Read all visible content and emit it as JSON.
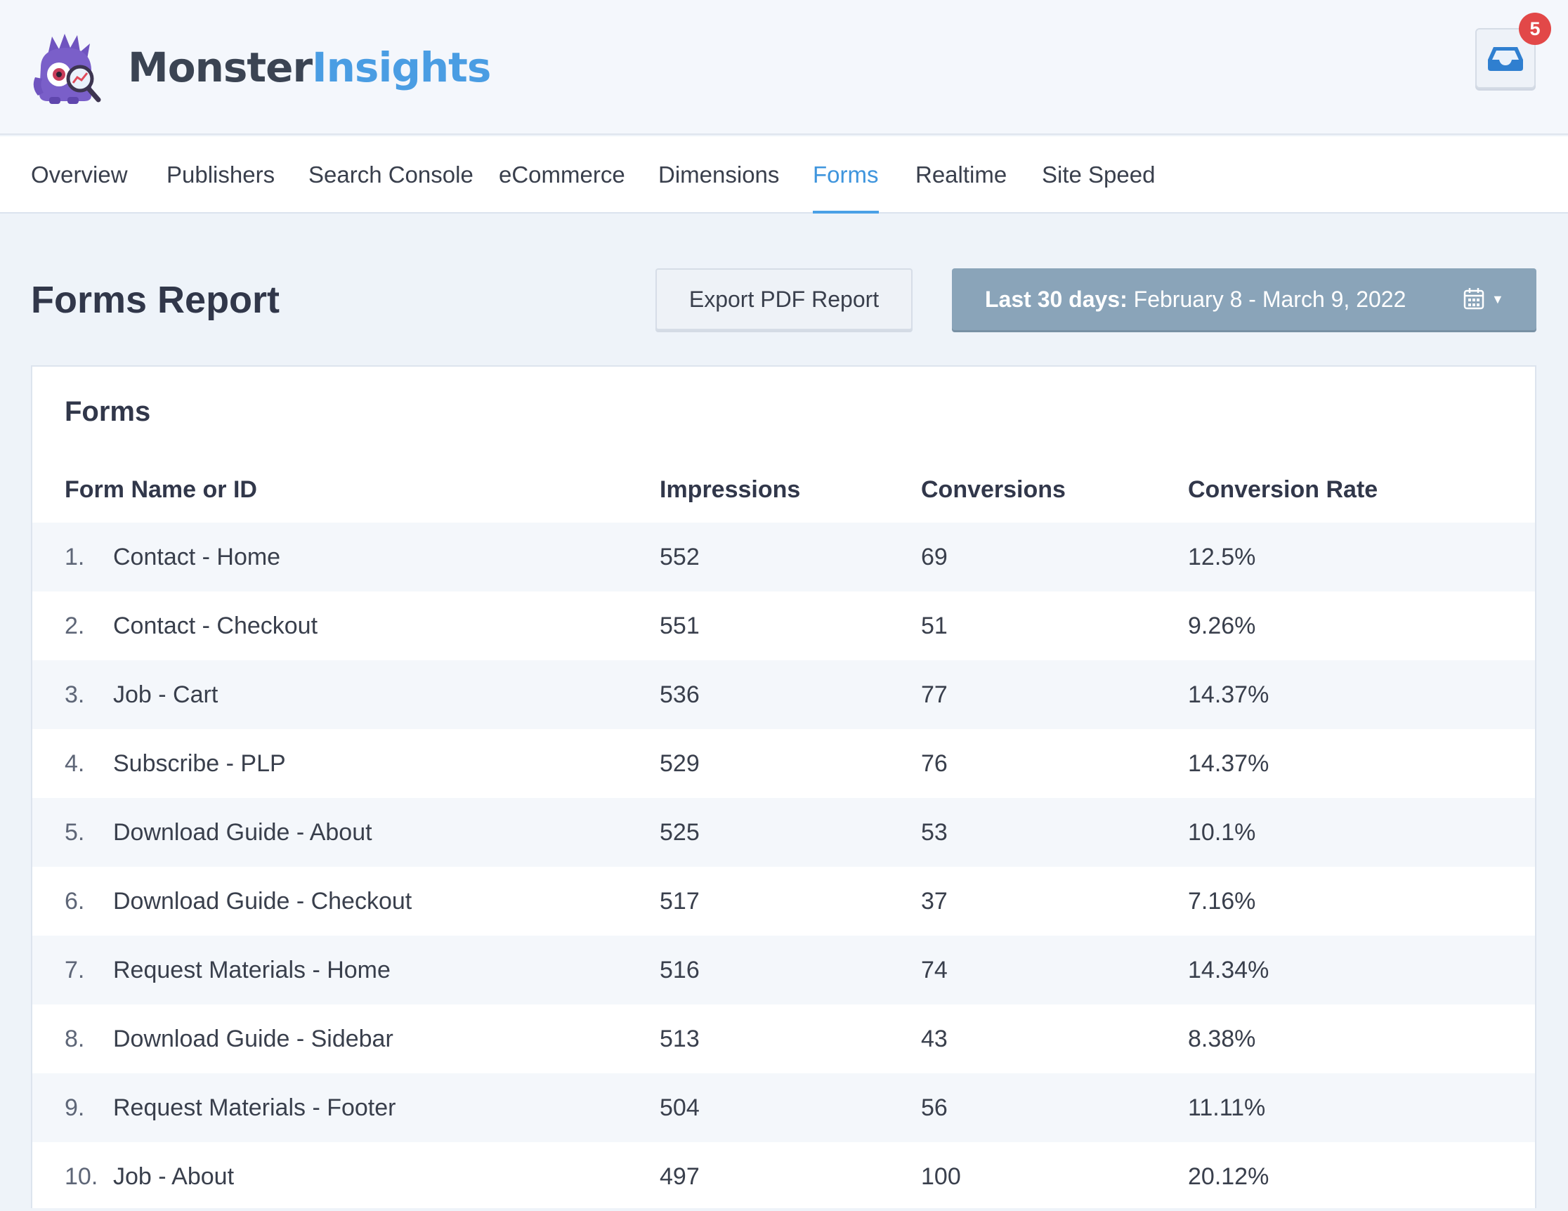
{
  "brand": {
    "name_part1": "Monster",
    "name_part2": "Insights"
  },
  "notifications": {
    "count": "5"
  },
  "tabs": [
    {
      "label": "Overview"
    },
    {
      "label": "Publishers"
    },
    {
      "label": "Search Console"
    },
    {
      "label": "eCommerce"
    },
    {
      "label": "Dimensions"
    },
    {
      "label": "Forms",
      "active": true
    },
    {
      "label": "Realtime"
    },
    {
      "label": "Site Speed"
    }
  ],
  "page": {
    "title": "Forms Report",
    "export_label": "Export PDF Report",
    "date_range_prefix": "Last 30 days:",
    "date_range_value": "February 8 - March 9, 2022"
  },
  "forms_table": {
    "title": "Forms",
    "columns": [
      "Form Name or ID",
      "Impressions",
      "Conversions",
      "Conversion Rate"
    ],
    "rows": [
      {
        "num": "1.",
        "name": "Contact - Home",
        "impressions": "552",
        "conversions": "69",
        "rate": "12.5%"
      },
      {
        "num": "2.",
        "name": "Contact - Checkout",
        "impressions": "551",
        "conversions": "51",
        "rate": "9.26%"
      },
      {
        "num": "3.",
        "name": "Job - Cart",
        "impressions": "536",
        "conversions": "77",
        "rate": "14.37%"
      },
      {
        "num": "4.",
        "name": "Subscribe - PLP",
        "impressions": "529",
        "conversions": "76",
        "rate": "14.37%"
      },
      {
        "num": "5.",
        "name": "Download Guide - About",
        "impressions": "525",
        "conversions": "53",
        "rate": "10.1%"
      },
      {
        "num": "6.",
        "name": "Download Guide - Checkout",
        "impressions": "517",
        "conversions": "37",
        "rate": "7.16%"
      },
      {
        "num": "7.",
        "name": "Request Materials - Home",
        "impressions": "516",
        "conversions": "74",
        "rate": "14.34%"
      },
      {
        "num": "8.",
        "name": "Download Guide - Sidebar",
        "impressions": "513",
        "conversions": "43",
        "rate": "8.38%"
      },
      {
        "num": "9.",
        "name": "Request Materials - Footer",
        "impressions": "504",
        "conversions": "56",
        "rate": "11.11%"
      },
      {
        "num": "10.",
        "name": "Job - About",
        "impressions": "497",
        "conversions": "100",
        "rate": "20.12%"
      }
    ]
  },
  "icons": {
    "logo": "monster-logo",
    "inbox": "inbox-icon",
    "calendar": "calendar-icon",
    "dropdown": "caret-down-icon"
  },
  "colors": {
    "accent": "#4a9de3",
    "date_button": "#8aa4b9",
    "badge": "#e24848",
    "logo_purple": "#7a5fc9"
  }
}
